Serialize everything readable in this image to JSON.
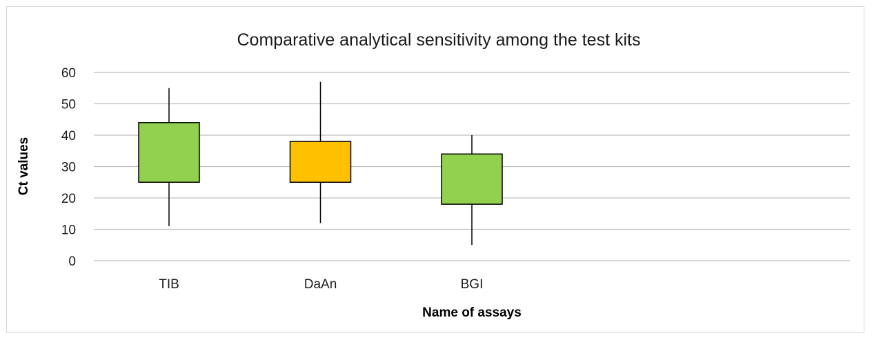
{
  "chart_data": {
    "type": "box",
    "title": "Comparative analytical sensitivity among the test kits",
    "xlabel": "Name of  assays",
    "ylabel": "Ct values",
    "ylim": [
      0,
      60
    ],
    "yticks": [
      "0",
      "10",
      "20",
      "30",
      "40",
      "50",
      "60"
    ],
    "grid": true,
    "legend": "none",
    "categories": [
      "TIB",
      "DaAn",
      "BGI"
    ],
    "boxes": [
      {
        "category": "TIB",
        "min": 11,
        "q1": 25,
        "q3": 44,
        "max": 55,
        "color": "#92d050"
      },
      {
        "category": "DaAn",
        "min": 12,
        "q1": 25,
        "q3": 38,
        "max": 57,
        "color": "#ffc000"
      },
      {
        "category": "BGI",
        "min": 5,
        "q1": 18,
        "q3": 34,
        "max": 40,
        "color": "#92d050"
      }
    ]
  }
}
